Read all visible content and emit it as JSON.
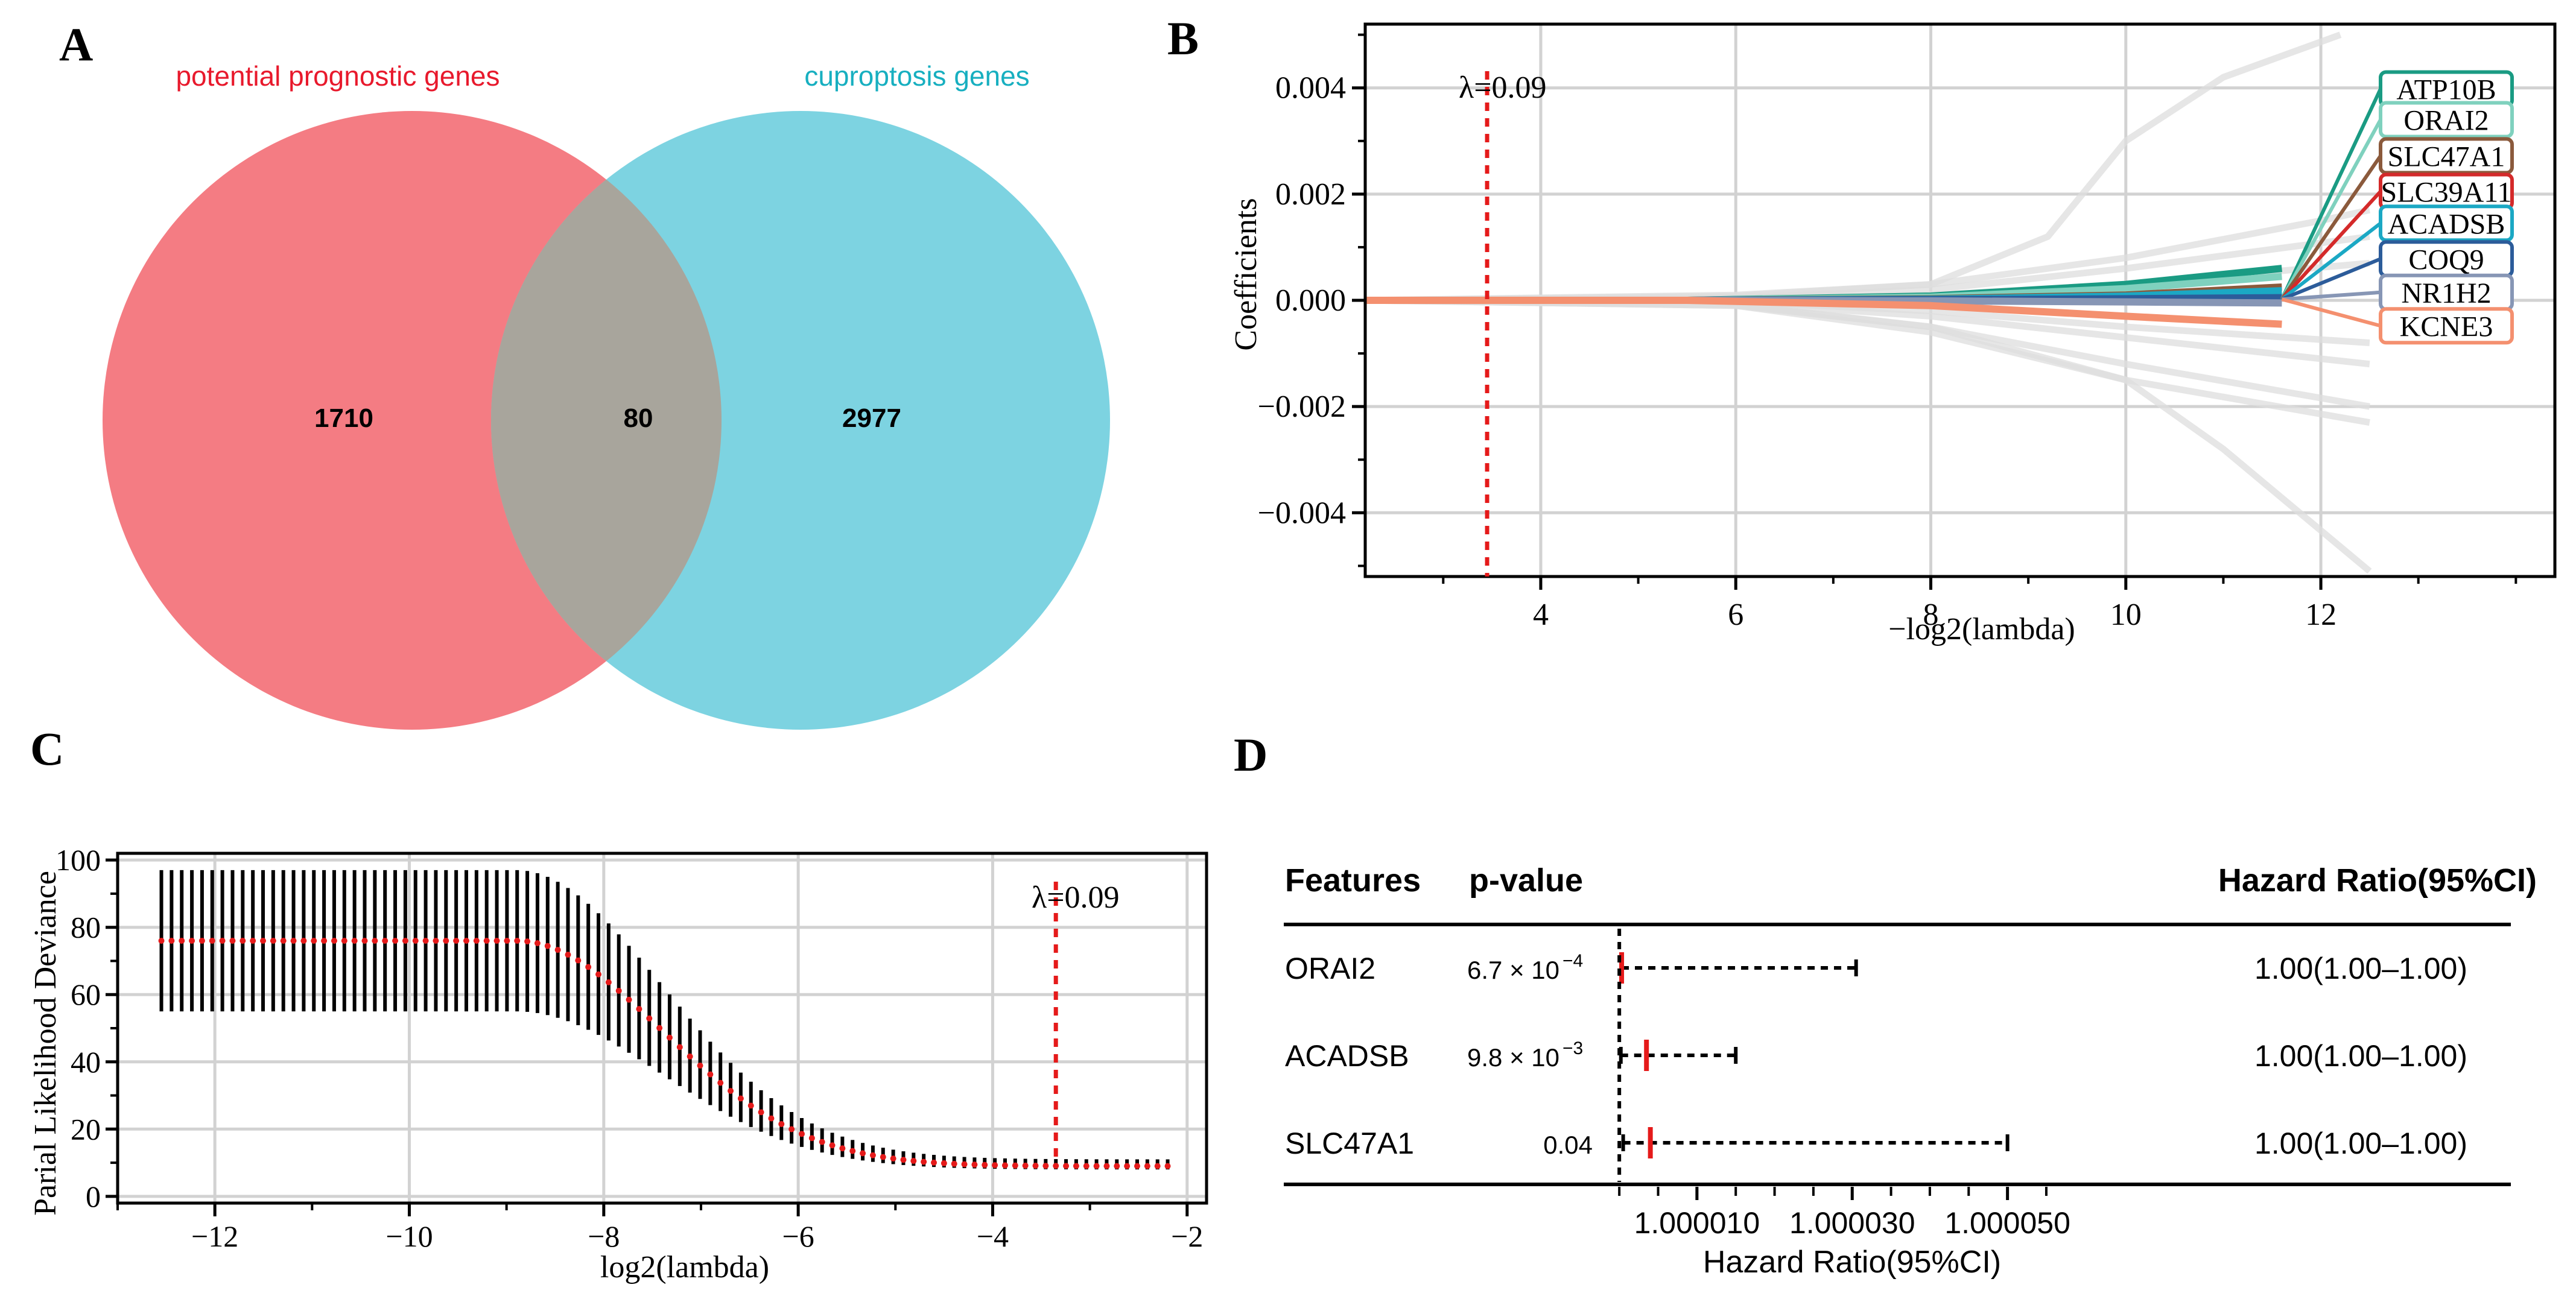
{
  "colors": {
    "venn_left": "#F47C83",
    "venn_right": "#7DD3E1",
    "venn_overlap": "#A8A59C",
    "label_left": "#E8192C",
    "label_right": "#17AFC0",
    "cutoff": "#E51A1A",
    "grid": "#d2d2d2",
    "bg_paths": "#dddddd",
    "black": "#000000"
  },
  "panels": {
    "a": {
      "letter": "A",
      "left_set_label": "potential prognostic genes",
      "right_set_label": "cuproptosis genes"
    },
    "b": {
      "letter": "B",
      "lambda_label": "λ=0.09"
    },
    "c": {
      "letter": "C",
      "lambda_label": "λ=0.09"
    },
    "d": {
      "letter": "D",
      "col_features": "Features",
      "col_pvalue": "p-value",
      "col_hr": "Hazard Ratio(95%CI)",
      "xlabel": "Hazard Ratio(95%CI)"
    }
  },
  "chart_data": [
    {
      "type": "venn",
      "panel": "A",
      "sets": [
        {
          "name": "potential prognostic genes",
          "only": 1710
        },
        {
          "name": "cuproptosis genes",
          "only": 2977
        }
      ],
      "intersection": 80
    },
    {
      "type": "line",
      "panel": "B",
      "title": "",
      "xlabel": "−log2(lambda)",
      "ylabel": "Coefficients",
      "xlim": [
        2.2,
        14.4
      ],
      "ylim": [
        -0.0052,
        0.0052
      ],
      "xticks": [
        4,
        6,
        8,
        10,
        12
      ],
      "yticks": [
        -0.004,
        -0.002,
        0.0,
        0.002,
        0.004
      ],
      "ytick_labels": [
        "−0.004",
        "−0.002",
        "0.000",
        "0.002",
        "0.004"
      ],
      "cutoff_x": 3.45,
      "series": [
        {
          "name": "ATP10B",
          "color": "#1A9B83",
          "label_y": 0.00398,
          "x": [
            2.2,
            5.5,
            8,
            10,
            11.6
          ],
          "y": [
            0,
            0,
            8e-05,
            0.0003,
            0.0006
          ]
        },
        {
          "name": "ORAI2",
          "color": "#7FD1BE",
          "label_y": 0.0034,
          "x": [
            2.2,
            5.5,
            8,
            10,
            11.6
          ],
          "y": [
            0,
            0,
            6e-05,
            0.00022,
            0.00045
          ]
        },
        {
          "name": "SLC47A1",
          "color": "#8B5A3C",
          "label_y": 0.00272,
          "x": [
            2.2,
            5.5,
            8,
            10,
            11.6
          ],
          "y": [
            0,
            0,
            3e-05,
            0.0001,
            0.00025
          ]
        },
        {
          "name": "SLC39A11",
          "color": "#D42A2A",
          "label_y": 0.00205,
          "x": [
            2.2,
            5.5,
            8,
            10,
            11.6
          ],
          "y": [
            0,
            0,
            1e-05,
            4e-05,
            8e-05
          ]
        },
        {
          "name": "ACADSB",
          "color": "#1BA8C4",
          "label_y": 0.00145,
          "x": [
            2.2,
            5.5,
            8,
            10,
            11.6
          ],
          "y": [
            0,
            0,
            2e-05,
            8e-05,
            0.00018
          ]
        },
        {
          "name": "COQ9",
          "color": "#2C5C9A",
          "label_y": 0.00078,
          "x": [
            2.2,
            5.5,
            8,
            10,
            11.6
          ],
          "y": [
            0,
            0,
            1e-05,
            3e-05,
            5e-05
          ]
        },
        {
          "name": "NR1H2",
          "color": "#8796B5",
          "label_y": 0.00015,
          "x": [
            2.2,
            5.5,
            8,
            10,
            11.6
          ],
          "y": [
            0,
            0,
            -1e-05,
            -3e-05,
            -5e-05
          ]
        },
        {
          "name": "KCNE3",
          "color": "#F4906F",
          "label_y": -0.00048,
          "x": [
            2.2,
            5.5,
            8,
            10,
            11.6
          ],
          "y": [
            0,
            0,
            -0.0001,
            -0.0003,
            -0.00045
          ]
        }
      ],
      "background_series": [
        {
          "x": [
            2.2,
            6,
            8,
            9.2,
            10,
            11,
            12.2
          ],
          "y": [
            0,
            0.0001,
            0.0003,
            0.0012,
            0.003,
            0.0042,
            0.005
          ]
        },
        {
          "x": [
            2.2,
            6,
            8,
            10,
            12,
            12.5
          ],
          "y": [
            0,
            8e-05,
            0.0003,
            0.0008,
            0.0015,
            0.0017
          ]
        },
        {
          "x": [
            2.2,
            6,
            8,
            10,
            12.5
          ],
          "y": [
            0,
            5e-05,
            0.0002,
            0.0006,
            0.0012
          ]
        },
        {
          "x": [
            2.2,
            6,
            8,
            10,
            12.5
          ],
          "y": [
            0,
            4e-05,
            0.0001,
            0.0003,
            0.0007
          ]
        },
        {
          "x": [
            2.2,
            6,
            8,
            10,
            11,
            12.5
          ],
          "y": [
            0,
            -0.0001,
            -0.0005,
            -0.0015,
            -0.0028,
            -0.0051
          ]
        },
        {
          "x": [
            2.2,
            6,
            8,
            10,
            12.5
          ],
          "y": [
            0,
            -0.0001,
            -0.0006,
            -0.0015,
            -0.0023
          ]
        },
        {
          "x": [
            2.2,
            6,
            8,
            10,
            12.5
          ],
          "y": [
            0,
            -8e-05,
            -0.0005,
            -0.0012,
            -0.002
          ]
        },
        {
          "x": [
            2.2,
            6,
            8,
            10,
            12.5
          ],
          "y": [
            0,
            -5e-05,
            -0.0003,
            -0.0007,
            -0.0012
          ]
        },
        {
          "x": [
            2.2,
            6,
            8,
            10,
            12.5
          ],
          "y": [
            0,
            -3e-05,
            -0.0002,
            -0.0005,
            -0.0008
          ]
        }
      ]
    },
    {
      "type": "errorbar",
      "panel": "C",
      "xlabel": "log2(lambda)",
      "ylabel": "Parial Likelihood Deviance",
      "xlim": [
        -13,
        -1.8
      ],
      "ylim": [
        -2,
        102
      ],
      "xticks": [
        -12,
        -10,
        -8,
        -6,
        -4,
        -2
      ],
      "xtick_labels": [
        "−12",
        "−10",
        "−8",
        "−6",
        "−4",
        "−2"
      ],
      "yticks": [
        0,
        20,
        40,
        60,
        80,
        100
      ],
      "cutoff_x": -3.35,
      "x_start": -12.55,
      "x_end": -2.2,
      "n_points": 100,
      "plateau_end_x": -8.9,
      "plateau": {
        "mean": 76,
        "lower": 55,
        "upper": 97
      },
      "final": {
        "mean": 9,
        "lower": 8,
        "upper": 11
      },
      "decay_width": 0.85
    },
    {
      "type": "forest",
      "panel": "D",
      "xlabel": "Hazard Ratio(95%CI)",
      "xlim": [
        0.9999975,
        1.00007
      ],
      "reference": 1.0,
      "xticks": [
        1.00001,
        1.00003,
        1.00005
      ],
      "xtick_labels": [
        "1.000010",
        "1.000030",
        "1.000050"
      ],
      "minor_step": 5e-06,
      "rows": [
        {
          "feature": "ORAI2",
          "p_value": "6.7 × 10",
          "p_exp": "−4",
          "hr": 1.0000003,
          "lower": 1.0000003,
          "upper": 1.0000305,
          "hr_text": "1.00(1.00–1.00)"
        },
        {
          "feature": "ACADSB",
          "p_value": "9.8 × 10",
          "p_exp": "−3",
          "hr": 1.0000035,
          "lower": 1.0000002,
          "upper": 1.000015,
          "hr_text": "1.00(1.00–1.00)"
        },
        {
          "feature": "SLC47A1",
          "p_value": "0.04",
          "p_exp": "",
          "hr": 1.000004,
          "lower": 1.0000005,
          "upper": 1.00005,
          "hr_text": "1.00(1.00–1.00)"
        }
      ]
    }
  ]
}
